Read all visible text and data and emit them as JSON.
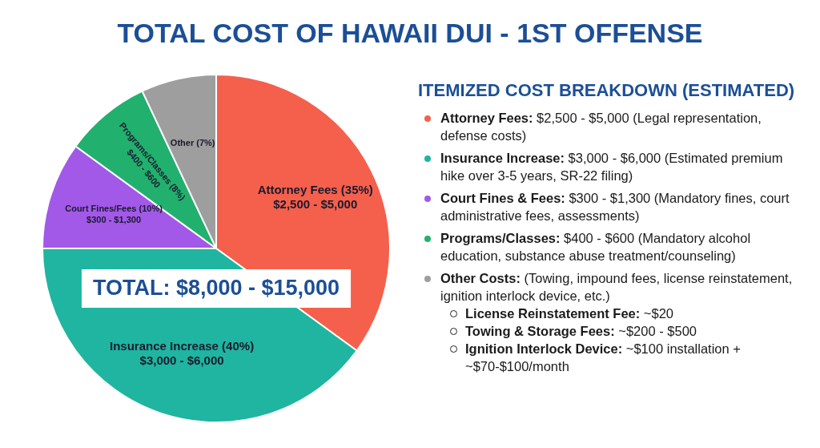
{
  "chart_data": [
    {
      "type": "pie",
      "title": "TOTAL COST OF HAWAII DUI - 1ST OFFENSE",
      "categories": [
        "Attorney Fees",
        "Insurance Increase",
        "Court Fines/Fees",
        "Programs/Classes",
        "Other"
      ],
      "values": [
        35,
        40,
        10,
        8,
        7
      ],
      "colors": [
        "#f4604c",
        "#1fb5a0",
        "#a259e8",
        "#22b06e",
        "#9e9e9e"
      ],
      "value_labels": [
        "(35%)",
        "(40%)",
        "(10%)",
        "(8%)",
        "(7%)"
      ],
      "annotations": [
        {
          "text": "$2,500 - $5,000",
          "x": "Attorney Fees"
        },
        {
          "text": "$3,000 - $6,000",
          "x": "Insurance Increase"
        },
        {
          "text": "$300 - $1,300",
          "x": "Court Fines/Fees"
        },
        {
          "text": "$400 - $600",
          "x": "Programs/Classes"
        },
        "TOTAL: $8,000 - $15,000"
      ]
    },
    {
      "type": "other",
      "title": "ITEMIZED COST BREAKDOWN (ESTIMATED)",
      "annotations": [
        "Attorney Fees: $2,500 - $5,000 (Legal representation, defense costs)",
        "Insurance Increase: $3,000 - $6,000 (Estimated premium hike over 3-5 years, SR-22 filing)",
        "Court Fines & Fees: $300 - $1,300 (Mandatory fines, court administrative fees, assessments)",
        "Programs/Classes: $400 - $600 (Mandatory alcohol education, substance abuse treatment/counseling)",
        "Other Costs: (Towing, impound fees, license reinstatement, ignition interlock device, etc.)",
        "License Reinstatement Fee: ~$20",
        "Towing & Storage Fees: ~$200 - $500",
        "Ignition Interlock Device: ~$100 installation + ~$70-$100/month"
      ]
    }
  ]
}
